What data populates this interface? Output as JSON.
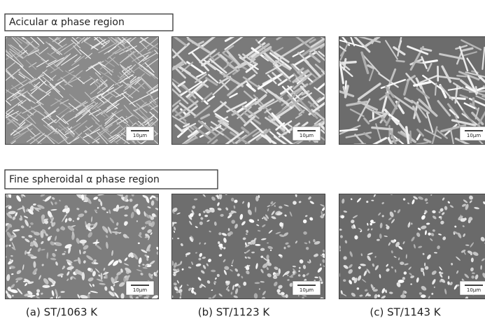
{
  "sections": [
    {
      "label": "Acicular α phase region",
      "panels": [
        {
          "scale_bar": "10μm"
        },
        {
          "scale_bar": "10μm"
        },
        {
          "scale_bar": "10μm"
        }
      ]
    },
    {
      "label": "Fine spheroidal α phase region",
      "panels": [
        {
          "scale_bar": "10μm"
        },
        {
          "scale_bar": "10μm"
        },
        {
          "scale_bar": "10μm"
        }
      ]
    }
  ],
  "captions": [
    "(a) ST/1063 K",
    "(b) ST/1123 K",
    "(c) ST/1143 K"
  ]
}
